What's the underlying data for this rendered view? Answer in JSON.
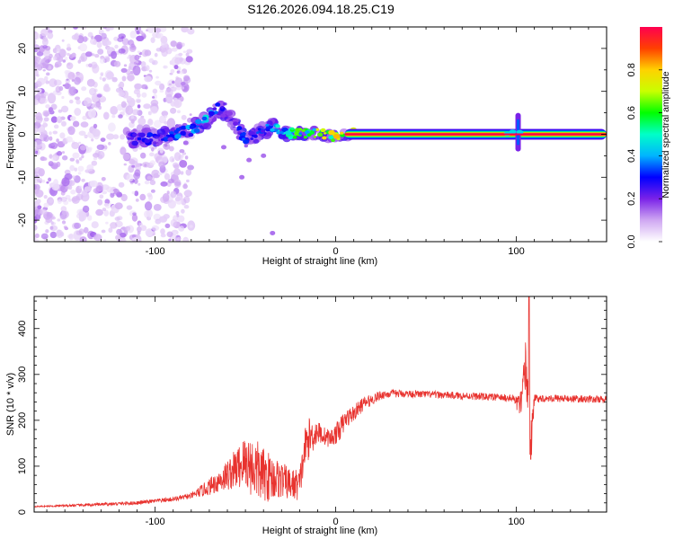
{
  "title": "S126.2026.094.18.25.C19",
  "chart_data": [
    {
      "type": "heatmap",
      "name": "spectrogram",
      "xlabel": "Height of straight line (km)",
      "ylabel": "Frequency (Hz)",
      "xlim": [
        -167,
        150
      ],
      "ylim": [
        -25,
        25
      ],
      "xticks": [
        -100,
        0,
        100
      ],
      "yticks": [
        -20,
        -10,
        0,
        10,
        20
      ],
      "colorbar": {
        "label": "Normalized spectral amplitude",
        "range": [
          0,
          1
        ],
        "ticks": [
          0.0,
          0.2,
          0.4,
          0.6,
          0.8
        ],
        "colormap": [
          "#ffffff",
          "#cfa7f2",
          "#7a22e8",
          "#0000ff",
          "#00b4ff",
          "#00ffc8",
          "#00ff00",
          "#c8ff00",
          "#ffd200",
          "#ff4000",
          "#ff0050"
        ]
      },
      "features": [
        {
          "description": "diffuse noise",
          "x_range": [
            -167,
            -80
          ],
          "freq_range": [
            -25,
            25
          ],
          "amplitude": 0.05
        },
        {
          "description": "wandering signal",
          "x": [
            -115,
            -100,
            -90,
            -80,
            -72,
            -66,
            -60,
            -55,
            -50,
            -45,
            -40,
            -35,
            -30,
            -20,
            -10,
            0,
            10
          ],
          "freq": [
            -1,
            -1,
            0,
            1,
            3,
            6,
            5,
            2,
            -1,
            0,
            1,
            2,
            0,
            0.5,
            0,
            -0.5,
            0
          ],
          "amplitude": [
            0.3,
            0.35,
            0.4,
            0.45,
            0.5,
            0.4,
            0.3,
            0.3,
            0.4,
            0.35,
            0.4,
            0.5,
            0.6,
            0.7,
            0.8,
            0.9,
            1.0
          ]
        },
        {
          "description": "steady line",
          "x_range": [
            5,
            150
          ],
          "freq": 0,
          "amplitude": 1.0
        },
        {
          "description": "spike near 100 km",
          "x": 101,
          "freq_range": [
            -4,
            5
          ],
          "amplitude": 0.3
        }
      ]
    },
    {
      "type": "line",
      "name": "snr",
      "xlabel": "Height of straight line (km)",
      "ylabel": "SNR (10 * v/v)",
      "xlim": [
        -167,
        150
      ],
      "ylim": [
        0,
        470
      ],
      "xticks": [
        -100,
        0,
        100
      ],
      "yticks": [
        0,
        100,
        200,
        300,
        400
      ],
      "color": "#e8332f",
      "series": [
        {
          "name": "SNR",
          "x": [
            -167,
            -140,
            -110,
            -90,
            -80,
            -70,
            -62,
            -55,
            -50,
            -45,
            -40,
            -35,
            -30,
            -25,
            -20,
            -17,
            -15,
            -12,
            -10,
            -6,
            -3,
            0,
            3,
            6,
            10,
            15,
            20,
            25,
            30,
            40,
            60,
            80,
            90,
            98,
            103,
            105,
            107,
            108,
            110,
            120,
            150
          ],
          "y": [
            12,
            15,
            20,
            28,
            35,
            55,
            75,
            95,
            110,
            95,
            80,
            75,
            70,
            60,
            60,
            140,
            160,
            170,
            175,
            165,
            160,
            170,
            185,
            205,
            215,
            235,
            245,
            255,
            258,
            258,
            255,
            252,
            250,
            248,
            230,
            320,
            230,
            140,
            248,
            248,
            245
          ],
          "noise": [
            1,
            3,
            4,
            5,
            6,
            18,
            30,
            45,
            60,
            70,
            60,
            50,
            40,
            35,
            35,
            45,
            45,
            35,
            25,
            20,
            20,
            22,
            25,
            20,
            18,
            15,
            12,
            10,
            9,
            8,
            8,
            8,
            8,
            8,
            35,
            70,
            120,
            60,
            8,
            8,
            8
          ]
        }
      ],
      "peaks": [
        {
          "x": 107,
          "y": 470
        },
        {
          "x": 108,
          "y": 115
        }
      ]
    }
  ]
}
